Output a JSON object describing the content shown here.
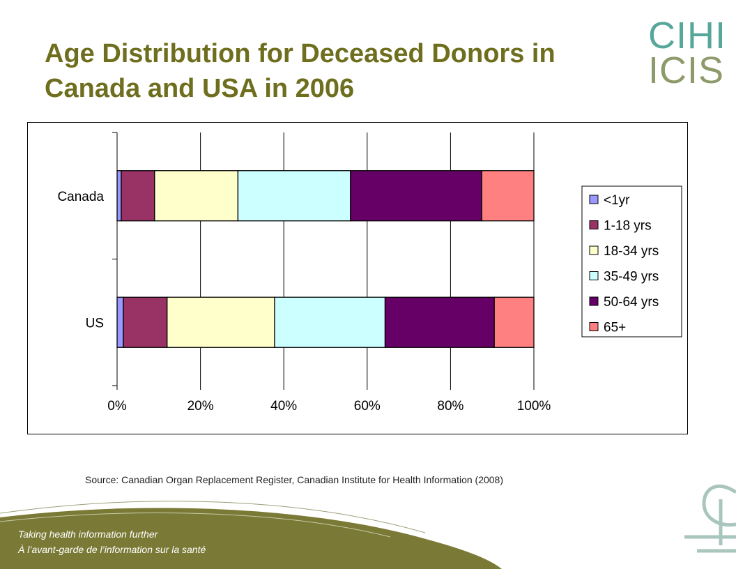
{
  "title": "Age Distribution for Deceased Donors in Canada and USA in 2006",
  "logo": {
    "line1": "CIHI",
    "line2": "ICIS"
  },
  "chart_data": {
    "type": "bar",
    "orientation": "horizontal",
    "stacked": "percent",
    "categories": [
      "Canada",
      "US"
    ],
    "series": [
      {
        "name": "<1yr",
        "color": "#9999ff",
        "values": [
          1,
          1.5
        ]
      },
      {
        "name": "1-18 yrs",
        "color": "#993366",
        "values": [
          8,
          10.5
        ]
      },
      {
        "name": "18-34 yrs",
        "color": "#ffffcc",
        "values": [
          20,
          25.8
        ]
      },
      {
        "name": "35-49 yrs",
        "color": "#ccffff",
        "values": [
          27,
          26.5
        ]
      },
      {
        "name": "50-64 yrs",
        "color": "#660066",
        "values": [
          31.5,
          26.2
        ]
      },
      {
        "name": "65+",
        "color": "#ff8080",
        "values": [
          12.5,
          9.5
        ]
      }
    ],
    "xlim": [
      0,
      100
    ],
    "xticks": [
      "0%",
      "20%",
      "40%",
      "60%",
      "80%",
      "100%"
    ],
    "grid": "vertical",
    "legend": "right"
  },
  "source": "Source: Canadian Organ Replacement Register, Canadian Institute for Health Information (2008)",
  "footer": {
    "tagline_en": "Taking health information further",
    "tagline_fr": "À l’avant-garde de l’information sur la santé"
  }
}
